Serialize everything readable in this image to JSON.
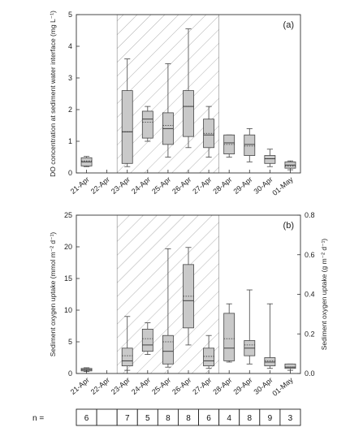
{
  "chart_data": [
    {
      "type": "box",
      "panel_label": "(a)",
      "ylabel": "DO concentration at sediment water interface (mg L⁻¹)",
      "ylim": [
        0,
        5
      ],
      "yticks": [
        "0",
        "1",
        "2",
        "3",
        "4",
        "5"
      ],
      "categories": [
        "21-Apr",
        "22-Apr",
        "23-Apr",
        "24-Apr",
        "25-Apr",
        "26-Apr",
        "27-Apr",
        "28-Apr",
        "29-Apr",
        "30-Apr",
        "01-May"
      ],
      "shaded_range": [
        "23-Apr",
        "27-Apr"
      ],
      "boxes": [
        {
          "category": "21-Apr",
          "min": 0.2,
          "q1": 0.22,
          "median": 0.35,
          "mean": 0.38,
          "q3": 0.48,
          "max": 0.52
        },
        {
          "category": "23-Apr",
          "min": 0.2,
          "q1": 0.3,
          "median": 1.3,
          "mean": 1.3,
          "q3": 2.6,
          "max": 3.6
        },
        {
          "category": "24-Apr",
          "min": 1.0,
          "q1": 1.1,
          "median": 1.7,
          "mean": 1.6,
          "q3": 1.95,
          "max": 2.1
        },
        {
          "category": "25-Apr",
          "min": 0.5,
          "q1": 0.9,
          "median": 1.4,
          "mean": 1.5,
          "q3": 1.9,
          "max": 3.45
        },
        {
          "category": "26-Apr",
          "min": 0.8,
          "q1": 1.15,
          "median": 2.1,
          "mean": 2.1,
          "q3": 2.6,
          "max": 4.55
        },
        {
          "category": "27-Apr",
          "min": 0.5,
          "q1": 0.8,
          "median": 1.2,
          "mean": 1.25,
          "q3": 1.7,
          "max": 2.1
        },
        {
          "category": "28-Apr",
          "min": 0.5,
          "q1": 0.6,
          "median": 0.95,
          "mean": 0.9,
          "q3": 1.2,
          "max": 1.2
        },
        {
          "category": "29-Apr",
          "min": 0.35,
          "q1": 0.55,
          "median": 0.9,
          "mean": 0.85,
          "q3": 1.2,
          "max": 1.4
        },
        {
          "category": "30-Apr",
          "min": 0.2,
          "q1": 0.3,
          "median": 0.45,
          "mean": 0.45,
          "q3": 0.55,
          "max": 0.75
        },
        {
          "category": "01-May",
          "min": 0.1,
          "q1": 0.15,
          "median": 0.25,
          "mean": 0.22,
          "q3": 0.35,
          "max": 0.38
        }
      ]
    },
    {
      "type": "box",
      "panel_label": "(b)",
      "ylabel": "Sediment oxygen uptake (mmol m⁻² d⁻¹)",
      "ylabel_right": "Sediment oxygen uptake (g m⁻² d⁻¹)",
      "ylim": [
        0,
        25
      ],
      "yticks": [
        "0",
        "5",
        "10",
        "15",
        "20",
        "25"
      ],
      "ylim_right": [
        0,
        0.8
      ],
      "yticks_right": [
        "0.0",
        "0.2",
        "0.4",
        "0.6",
        "0.8"
      ],
      "categories": [
        "21-Apr",
        "22-Apr",
        "23-Apr",
        "24-Apr",
        "25-Apr",
        "26-Apr",
        "27-Apr",
        "28-Apr",
        "29-Apr",
        "30-Apr",
        "01-May"
      ],
      "shaded_range": [
        "23-Apr",
        "27-Apr"
      ],
      "boxes": [
        {
          "category": "21-Apr",
          "min": 0.3,
          "q1": 0.4,
          "median": 0.6,
          "mean": 0.6,
          "q3": 0.8,
          "max": 0.9
        },
        {
          "category": "23-Apr",
          "min": 0.5,
          "q1": 1.2,
          "median": 2.0,
          "mean": 2.8,
          "q3": 4.0,
          "max": 9.0
        },
        {
          "category": "24-Apr",
          "min": 3.0,
          "q1": 3.5,
          "median": 4.5,
          "mean": 5.5,
          "q3": 7.0,
          "max": 8.0
        },
        {
          "category": "25-Apr",
          "min": 1.0,
          "q1": 1.5,
          "median": 3.5,
          "mean": 5.0,
          "q3": 6.0,
          "max": 19.7
        },
        {
          "category": "26-Apr",
          "min": 4.5,
          "q1": 7.2,
          "median": 11.5,
          "mean": 12.2,
          "q3": 17.2,
          "max": 19.9
        },
        {
          "category": "27-Apr",
          "min": 0.8,
          "q1": 1.2,
          "median": 2.0,
          "mean": 2.7,
          "q3": 4.0,
          "max": 6.0
        },
        {
          "category": "28-Apr",
          "min": 1.8,
          "q1": 2.0,
          "median": 4.0,
          "mean": 5.5,
          "q3": 9.5,
          "max": 11.0
        },
        {
          "category": "29-Apr",
          "min": 1.5,
          "q1": 2.8,
          "median": 4.0,
          "mean": 4.5,
          "q3": 5.2,
          "max": 13.2
        },
        {
          "category": "30-Apr",
          "min": 0.8,
          "q1": 1.2,
          "median": 1.8,
          "mean": 2.0,
          "q3": 2.5,
          "max": 11.0
        },
        {
          "category": "01-May",
          "min": 0.5,
          "q1": 0.8,
          "median": 1.0,
          "mean": 1.0,
          "q3": 1.5,
          "max": 1.5
        }
      ]
    }
  ],
  "n_row": {
    "label": "n =",
    "values": [
      "6",
      "",
      "7",
      "5",
      "8",
      "8",
      "6",
      "4",
      "8",
      "9",
      "3"
    ]
  }
}
